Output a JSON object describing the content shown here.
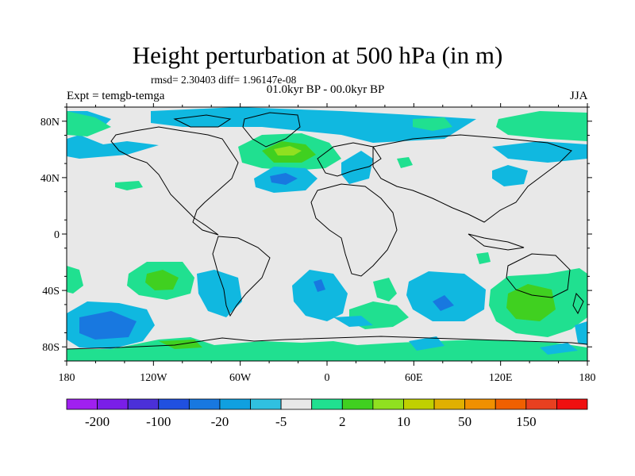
{
  "title": "Height perturbation at 500 hPa (in m)",
  "stats": "rmsd= 2.30403 diff= 1.96147e-08",
  "period": "01.0kyr BP - 00.0kyr BP",
  "expt": "Expt = temgb-temga",
  "season": "JJA",
  "lon_ticks": [
    "180",
    "120W",
    "60W",
    "0",
    "60E",
    "120E",
    "180"
  ],
  "lat_ticks": [
    "80N",
    "40N",
    "0",
    "40S",
    "80S"
  ],
  "colorbar": {
    "colors": [
      "#a020f0",
      "#7a1ee8",
      "#4b30d8",
      "#2050e0",
      "#1878e0",
      "#10a0e0",
      "#30c0e0",
      "#e8e8e8",
      "#20e090",
      "#40d020",
      "#90e020",
      "#c0d000",
      "#e0b000",
      "#f09000",
      "#f06000",
      "#e84020",
      "#f01010"
    ],
    "labels": [
      "-200",
      "-100",
      "-20",
      "-5",
      "2",
      "10",
      "50",
      "150"
    ]
  },
  "colors": {
    "neutral": "#e8e8e8",
    "pos1": "#20e090",
    "pos2": "#40d020",
    "pos3": "#90e020",
    "neg1": "#10b8e0",
    "neg2": "#1878e0"
  }
}
